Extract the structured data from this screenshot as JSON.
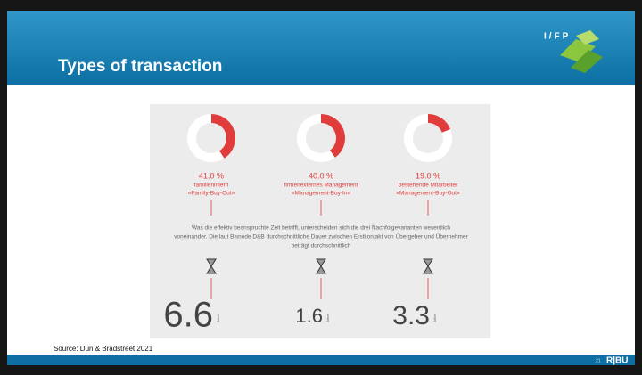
{
  "header": {
    "title": "Types of transaction",
    "logo": "I/FP"
  },
  "items": [
    {
      "value": 41.0,
      "value_label": "41.0 %",
      "label_lines": [
        "familienintern",
        "«Family-Buy-Out»"
      ],
      "duration": 6.6,
      "unit": "Jahre"
    },
    {
      "value": 40.0,
      "value_label": "40.0 %",
      "label_lines": [
        "firmenexternes Management",
        "«Management-Buy-In»"
      ],
      "duration": 1.6,
      "unit": "Jahre"
    },
    {
      "value": 19.0,
      "value_label": "19.0 %",
      "label_lines": [
        "bestehende Mitarbeiter",
        "«Management-Buy-Out»"
      ],
      "duration": 3.3,
      "unit": "Jahre"
    }
  ],
  "paragraph_lines": [
    "Was die effektiv beanspruchte Zeit betrifft, unterscheiden sich die drei Nachfolgevarianten wesentlich",
    "voneinander. Die laut Bisnode D&B durchschnittliche Dauer zwischen Erstkontakt von Übergeber und Übernehmer",
    "beträgt durchschnittlich"
  ],
  "source": "Source: Dun & Bradstreet 2021",
  "footer": {
    "page": "21",
    "brand": "R|BU"
  }
}
